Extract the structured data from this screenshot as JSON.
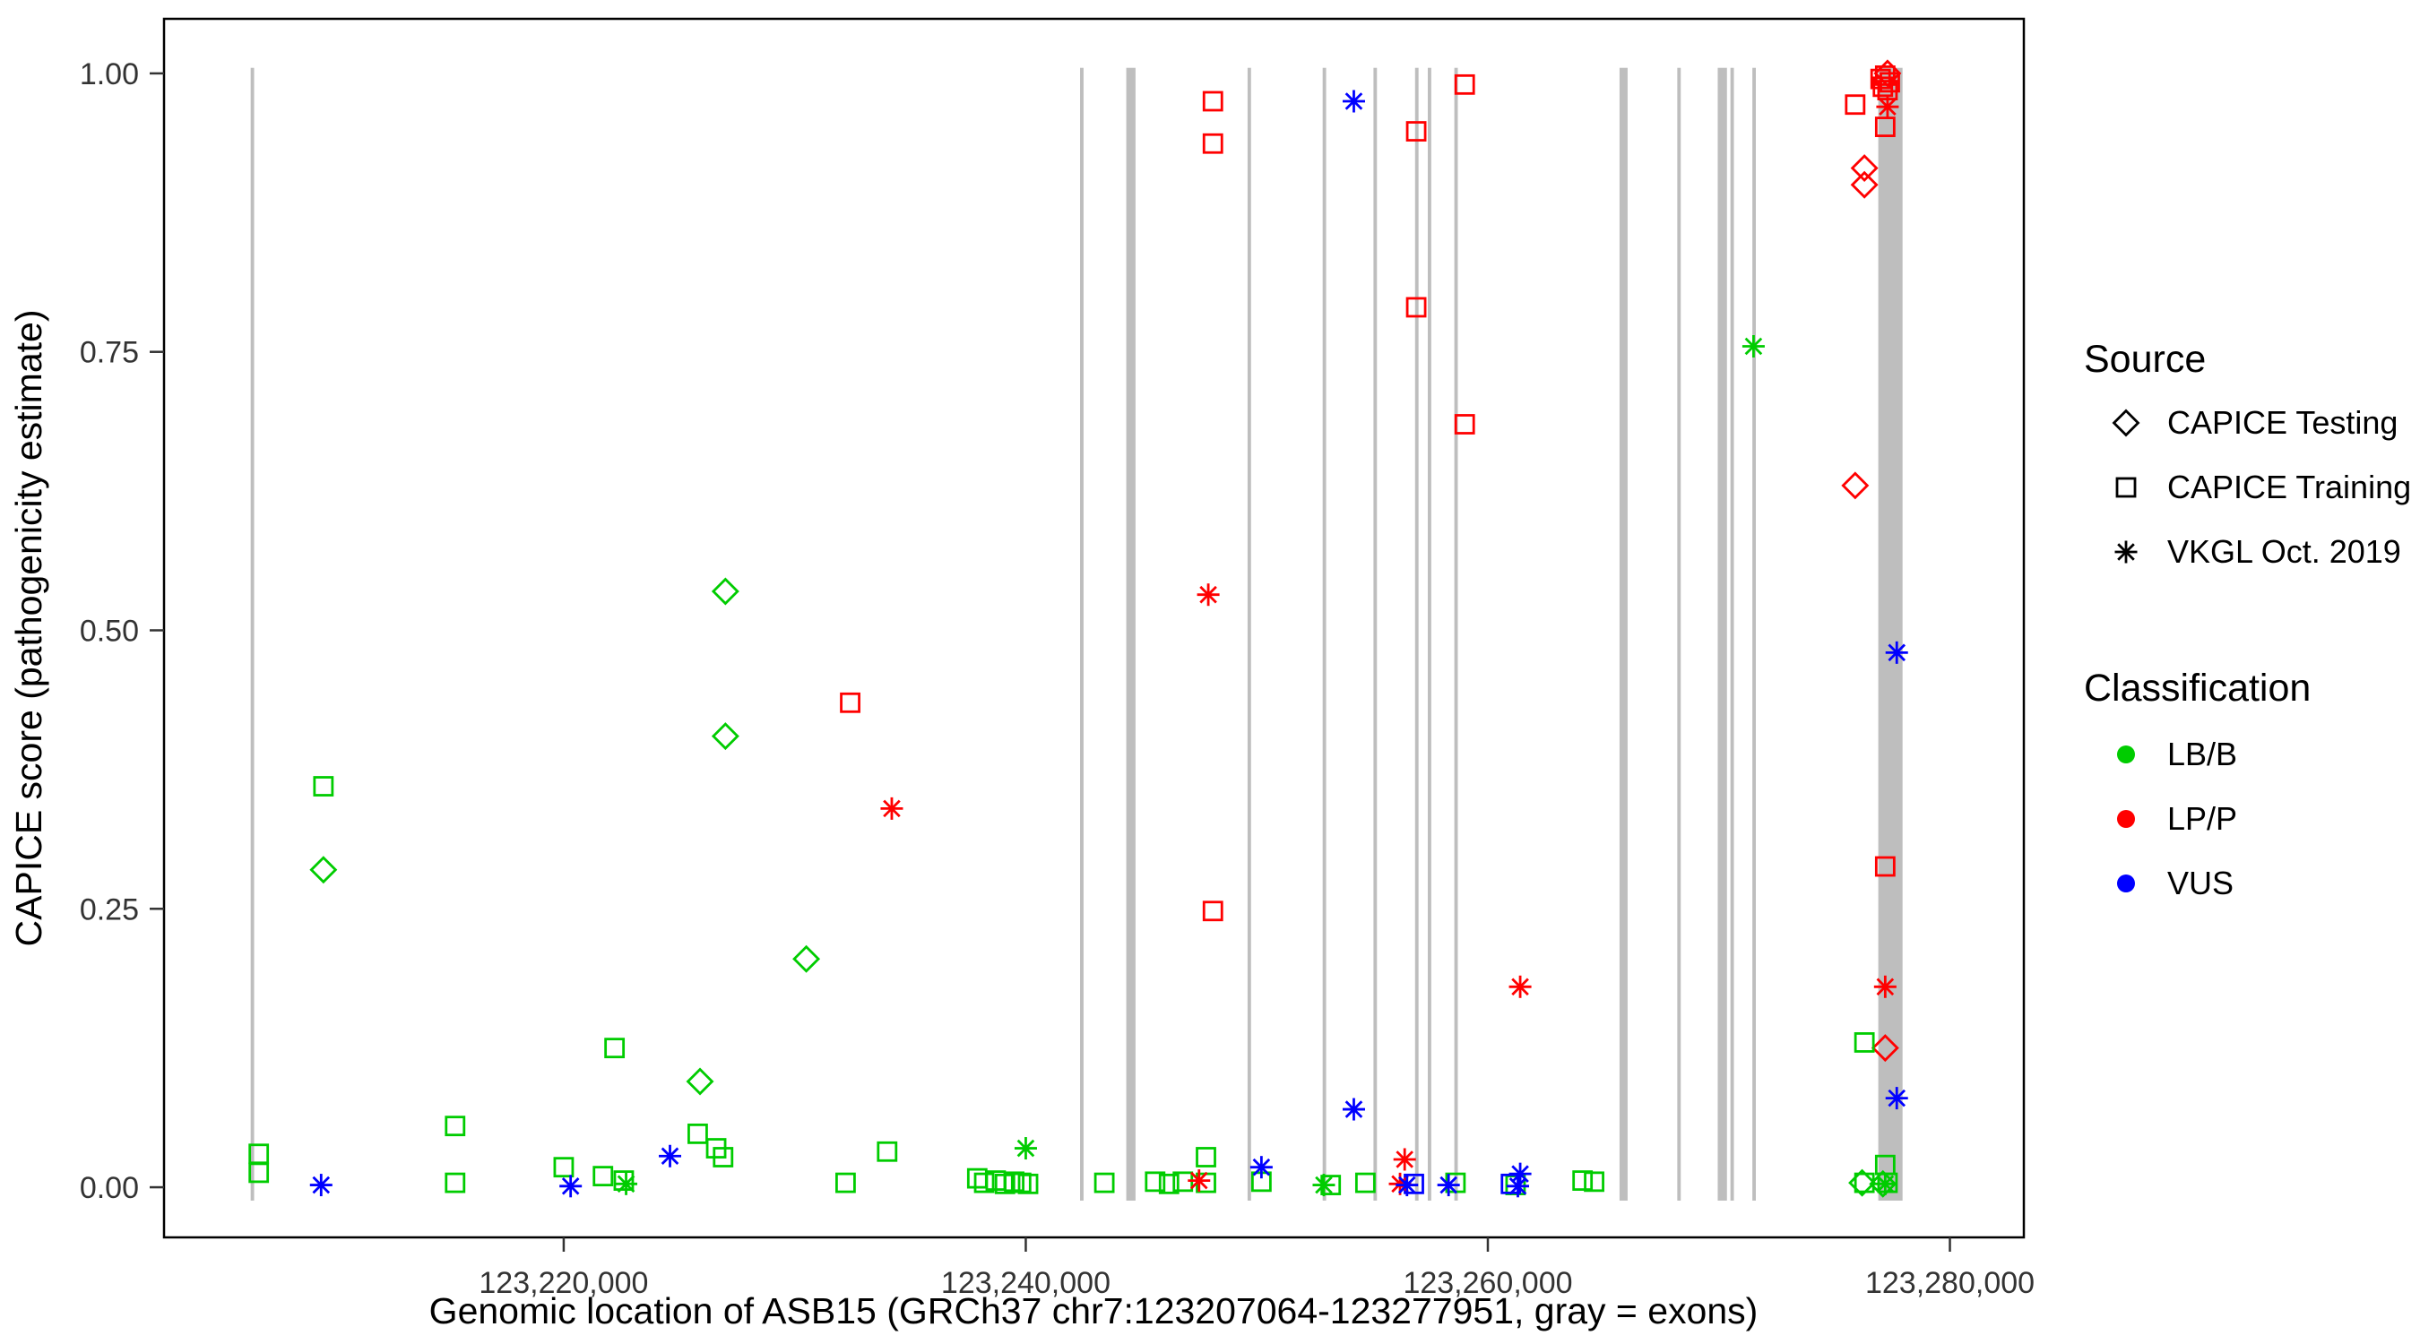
{
  "chart_data": {
    "type": "scatter",
    "title": "",
    "xlabel": "Genomic location of ASB15 (GRCh37 chr7:123207064-123277951, gray = exons)",
    "ylabel": "CAPICE score (pathogenicity estimate)",
    "gene": {
      "name": "ASB15",
      "assembly": "GRCh37",
      "chromosome": "chr7",
      "start": 123207064,
      "end": 123277951,
      "note": "gray = exons"
    },
    "xlim": [
      123202700,
      123283200
    ],
    "ylim": [
      -0.045,
      1.049
    ],
    "grid": false,
    "legend_position": "right",
    "x_ticks": [
      {
        "value": 123220000,
        "label": "123,220,000"
      },
      {
        "value": 123240000,
        "label": "123,240,000"
      },
      {
        "value": 123260000,
        "label": "123,260,000"
      },
      {
        "value": 123280000,
        "label": "123,280,000"
      }
    ],
    "y_ticks": [
      {
        "value": 0.0,
        "label": "0.00"
      },
      {
        "value": 0.25,
        "label": "0.25"
      },
      {
        "value": 0.5,
        "label": "0.50"
      },
      {
        "value": 0.75,
        "label": "0.75"
      },
      {
        "value": 1.0,
        "label": "1.00"
      }
    ],
    "exon_color": "#BEBEBE",
    "exons": [
      [
        123206450,
        123206600
      ],
      [
        123242350,
        123242500
      ],
      [
        123244350,
        123244750
      ],
      [
        123249600,
        123249750
      ],
      [
        123252850,
        123253000
      ],
      [
        123255050,
        123255200
      ],
      [
        123256850,
        123257000
      ],
      [
        123257400,
        123257550
      ],
      [
        123258550,
        123258700
      ],
      [
        123265700,
        123266050
      ],
      [
        123268200,
        123268350
      ],
      [
        123269950,
        123270350
      ],
      [
        123270500,
        123270650
      ],
      [
        123271450,
        123271600
      ],
      [
        123276900,
        123277950
      ]
    ],
    "legend": {
      "source": {
        "title": "Source",
        "items": [
          {
            "label": "CAPICE Testing",
            "marker": "diamond"
          },
          {
            "label": "CAPICE Training",
            "marker": "square"
          },
          {
            "label": "VKGL Oct. 2019",
            "marker": "asterisk"
          }
        ]
      },
      "classification": {
        "title": "Classification",
        "items": [
          {
            "label": "LB/B",
            "color": "#00CC00"
          },
          {
            "label": "LP/P",
            "color": "#FF0000"
          },
          {
            "label": "VUS",
            "color": "#0000FF"
          }
        ]
      }
    },
    "series": [
      {
        "source": "CAPICE Testing",
        "classification": "LB/B",
        "marker": "diamond",
        "color": "#00CC00",
        "points": [
          [
            123209600,
            0.285
          ],
          [
            123225900,
            0.095
          ],
          [
            123227000,
            0.535
          ],
          [
            123227000,
            0.405
          ],
          [
            123230500,
            0.205
          ],
          [
            123276200,
            0.004
          ],
          [
            123277100,
            0.003
          ]
        ]
      },
      {
        "source": "CAPICE Testing",
        "classification": "LP/P",
        "marker": "diamond",
        "color": "#FF0000",
        "points": [
          [
            123275900,
            0.63
          ],
          [
            123276300,
            0.915
          ],
          [
            123276300,
            0.9
          ],
          [
            123277200,
            0.125
          ],
          [
            123277300,
            1.0
          ]
        ]
      },
      {
        "source": "CAPICE Training",
        "classification": "LB/B",
        "marker": "square",
        "color": "#00CC00",
        "points": [
          [
            123206800,
            0.03
          ],
          [
            123206800,
            0.013
          ],
          [
            123209600,
            0.36
          ],
          [
            123215300,
            0.055
          ],
          [
            123215300,
            0.004
          ],
          [
            123220000,
            0.018
          ],
          [
            123221700,
            0.01
          ],
          [
            123222200,
            0.125
          ],
          [
            123222600,
            0.006
          ],
          [
            123225800,
            0.048
          ],
          [
            123226600,
            0.035
          ],
          [
            123226900,
            0.027
          ],
          [
            123232200,
            0.004
          ],
          [
            123234000,
            0.032
          ],
          [
            123237900,
            0.008
          ],
          [
            123238200,
            0.004
          ],
          [
            123238700,
            0.006
          ],
          [
            123239100,
            0.003
          ],
          [
            123239500,
            0.005
          ],
          [
            123239800,
            0.004
          ],
          [
            123240100,
            0.003
          ],
          [
            123243400,
            0.004
          ],
          [
            123245600,
            0.005
          ],
          [
            123246200,
            0.003
          ],
          [
            123246800,
            0.005
          ],
          [
            123247800,
            0.027
          ],
          [
            123247800,
            0.004
          ],
          [
            123250200,
            0.005
          ],
          [
            123253200,
            0.002
          ],
          [
            123254700,
            0.004
          ],
          [
            123258600,
            0.004
          ],
          [
            123261200,
            0.002
          ],
          [
            123264100,
            0.006
          ],
          [
            123264600,
            0.005
          ],
          [
            123276300,
            0.13
          ],
          [
            123276300,
            0.004
          ],
          [
            123277200,
            0.02
          ],
          [
            123277300,
            0.004
          ]
        ]
      },
      {
        "source": "CAPICE Training",
        "classification": "LP/P",
        "marker": "square",
        "color": "#FF0000",
        "points": [
          [
            123232400,
            0.435
          ],
          [
            123248100,
            0.975
          ],
          [
            123248100,
            0.937
          ],
          [
            123248100,
            0.248
          ],
          [
            123256900,
            0.948
          ],
          [
            123256900,
            0.79
          ],
          [
            123259000,
            0.99
          ],
          [
            123259000,
            0.685
          ],
          [
            123275900,
            0.972
          ],
          [
            123277200,
            0.952
          ],
          [
            123277200,
            0.288
          ],
          [
            123277000,
            0.995
          ],
          [
            123277200,
            0.998
          ],
          [
            123277400,
            0.992
          ],
          [
            123277300,
            0.985
          ],
          [
            123277100,
            0.988
          ]
        ]
      },
      {
        "source": "CAPICE Training",
        "classification": "VUS",
        "marker": "square",
        "color": "#0000FF",
        "points": [
          [
            123256800,
            0.003
          ],
          [
            123261000,
            0.003
          ]
        ]
      },
      {
        "source": "VKGL Oct. 2019",
        "classification": "LB/B",
        "marker": "asterisk",
        "color": "#00CC00",
        "points": [
          [
            123222700,
            0.003
          ],
          [
            123240000,
            0.035
          ],
          [
            123252900,
            0.002
          ],
          [
            123271500,
            0.755
          ],
          [
            123277200,
            0.003
          ]
        ]
      },
      {
        "source": "VKGL Oct. 2019",
        "classification": "LP/P",
        "marker": "asterisk",
        "color": "#FF0000",
        "points": [
          [
            123234200,
            0.34
          ],
          [
            123247900,
            0.532
          ],
          [
            123247500,
            0.006
          ],
          [
            123256400,
            0.025
          ],
          [
            123256200,
            0.003
          ],
          [
            123261400,
            0.18
          ],
          [
            123277200,
            0.18
          ],
          [
            123277300,
            0.97
          ]
        ]
      },
      {
        "source": "VKGL Oct. 2019",
        "classification": "VUS",
        "marker": "asterisk",
        "color": "#0000FF",
        "points": [
          [
            123209500,
            0.002
          ],
          [
            123220300,
            0.001
          ],
          [
            123224600,
            0.028
          ],
          [
            123250200,
            0.018
          ],
          [
            123254200,
            0.975
          ],
          [
            123254200,
            0.07
          ],
          [
            123256500,
            0.002
          ],
          [
            123258300,
            0.002
          ],
          [
            123261400,
            0.012
          ],
          [
            123261300,
            0.001
          ],
          [
            123277700,
            0.48
          ],
          [
            123277700,
            0.08
          ]
        ]
      }
    ]
  }
}
